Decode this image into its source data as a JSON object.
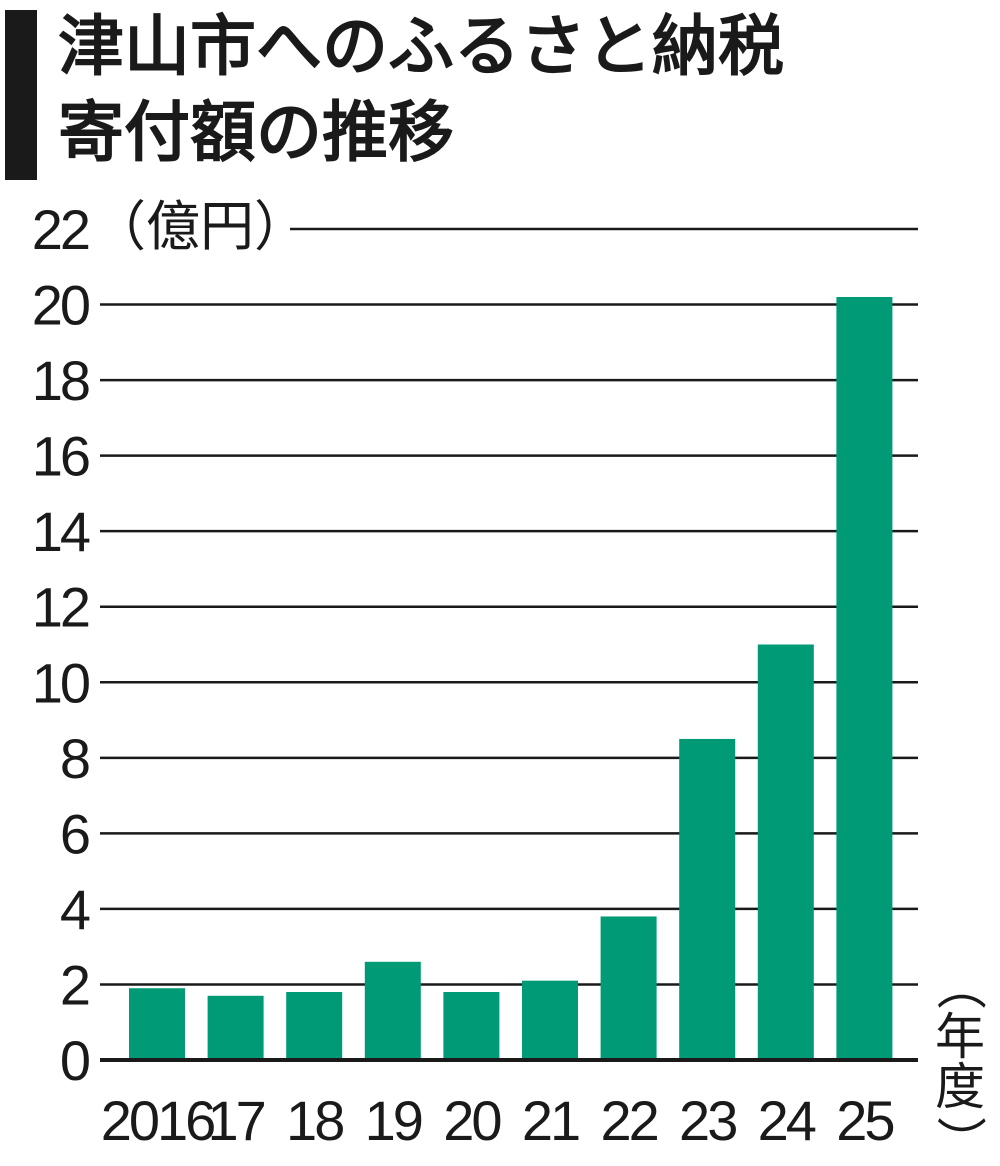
{
  "title_line1": "津山市へのふるさと納税",
  "title_line2": "寄付額の推移",
  "y_unit": "（億円）",
  "x_unit": [
    "（",
    "年",
    "度",
    "）"
  ],
  "colors": {
    "bar": "#009a76",
    "grid": "#1a1a1a",
    "text": "#1a1a1a"
  },
  "chart_data": {
    "type": "bar",
    "title": "津山市へのふるさと納税寄付額の推移",
    "ylabel": "（億円）",
    "xlabel": "（年度）",
    "ylim": [
      0,
      22
    ],
    "yticks": [
      0,
      2,
      4,
      6,
      8,
      10,
      12,
      14,
      16,
      18,
      20,
      22
    ],
    "grid": true,
    "categories": [
      "2016",
      "17",
      "18",
      "19",
      "20",
      "21",
      "22",
      "23",
      "24",
      "25"
    ],
    "values": [
      1.9,
      1.7,
      1.8,
      2.6,
      1.8,
      2.1,
      3.8,
      8.5,
      11.0,
      20.2
    ]
  }
}
